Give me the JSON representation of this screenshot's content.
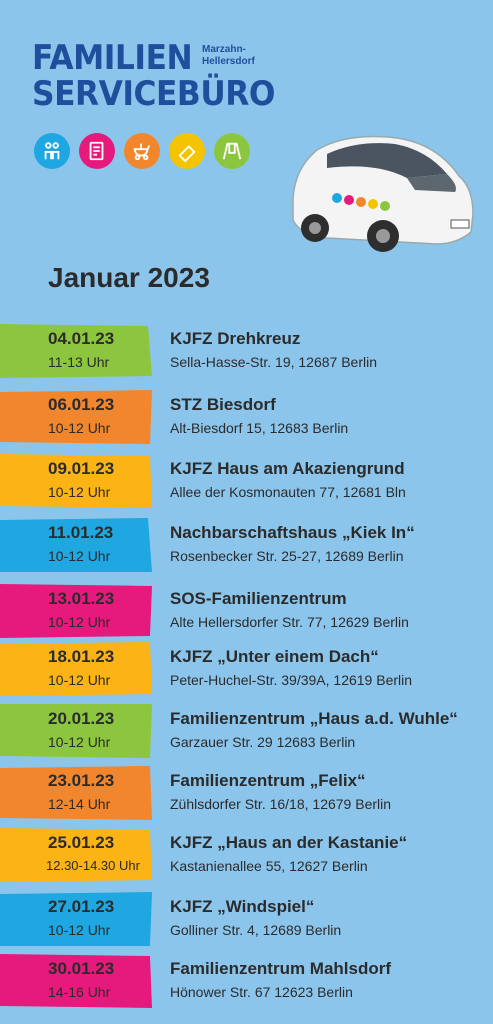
{
  "logo": {
    "line1": "FAMILIEN",
    "line2": "SERVICEBÜRO",
    "district_line1": "Marzahn-",
    "district_line2": "Hellersdorf"
  },
  "logo_icons": [
    {
      "name": "family-icon",
      "color": "#1ea7e0"
    },
    {
      "name": "document-icon",
      "color": "#e6197d"
    },
    {
      "name": "stroller-icon",
      "color": "#f2862d"
    },
    {
      "name": "book-icon",
      "color": "#f5c400"
    },
    {
      "name": "swing-icon",
      "color": "#8cc63e"
    }
  ],
  "month_title": "Januar 2023",
  "events": [
    {
      "date": "04.01.23",
      "time": "11-13 Uhr",
      "venue": "KJFZ Drehkreuz",
      "address": "Sella-Hasse-Str. 19, 12687 Berlin",
      "color": "#8cc63e"
    },
    {
      "date": "06.01.23",
      "time": "10-12 Uhr",
      "venue": "STZ Biesdorf",
      "address": "Alt-Biesdorf 15, 12683 Berlin",
      "color": "#f2862d"
    },
    {
      "date": "09.01.23",
      "time": "10-12 Uhr",
      "venue": "KJFZ Haus am Akaziengrund",
      "address": "Allee der Kosmonauten 77, 12681 Bln",
      "color": "#fbb315"
    },
    {
      "date": "11.01.23",
      "time": "10-12 Uhr",
      "venue": "Nachbarschaftshaus „Kiek In“",
      "address": "Rosenbecker Str. 25-27, 12689 Berlin",
      "color": "#1ea7e0"
    },
    {
      "date": "13.01.23",
      "time": "10-12 Uhr",
      "venue": "SOS-Familienzentrum",
      "address": "Alte Hellersdorfer Str. 77, 12629 Berlin",
      "color": "#e6197d"
    },
    {
      "date": "18.01.23",
      "time": "10-12 Uhr",
      "venue": "KJFZ „Unter einem Dach“",
      "address": "Peter-Huchel-Str. 39/39A, 12619 Berlin",
      "color": "#fbb315"
    },
    {
      "date": "20.01.23",
      "time": "10-12 Uhr",
      "venue": "Familienzentrum „Haus a.d. Wuhle“",
      "address": "Garzauer Str. 29 12683 Berlin",
      "color": "#8cc63e"
    },
    {
      "date": "23.01.23",
      "time": "12-14 Uhr",
      "venue": "Familienzentrum „Felix“",
      "address": "Zühlsdorfer Str. 16/18, 12679 Berlin",
      "color": "#f2862d"
    },
    {
      "date": "25.01.23",
      "time": "12.30-14.30 Uhr",
      "venue": "KJFZ „Haus an der Kastanie“",
      "address": "Kastanienallee 55, 12627 Berlin",
      "color": "#fbb315"
    },
    {
      "date": "27.01.23",
      "time": "10-12 Uhr",
      "venue": "KJFZ „Windspiel“",
      "address": "Golliner Str. 4, 12689 Berlin",
      "color": "#1ea7e0"
    },
    {
      "date": "30.01.23",
      "time": "14-16 Uhr",
      "venue": "Familienzentrum Mahlsdorf",
      "address": "Hönower Str. 67 12623 Berlin",
      "color": "#e6197d"
    }
  ]
}
